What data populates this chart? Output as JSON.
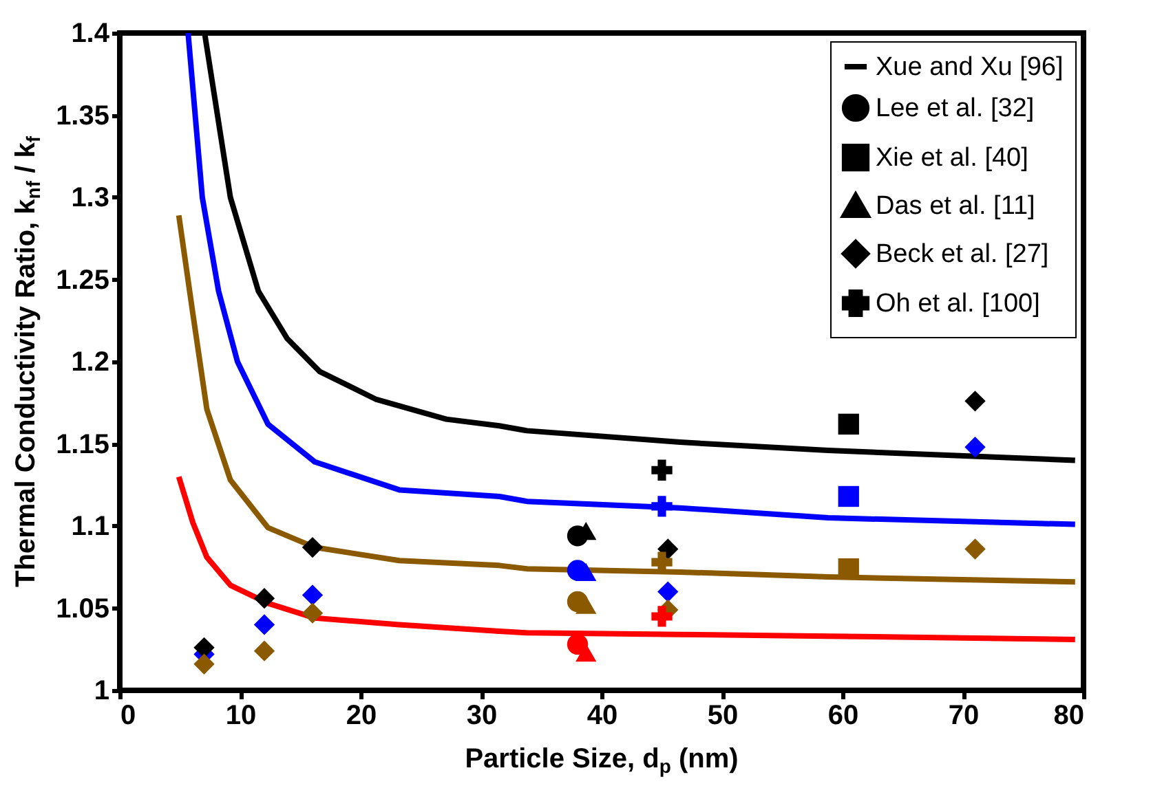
{
  "chart_data": {
    "type": "scatter",
    "xlabel": "Particle Size, d$_{p}$ (nm)",
    "ylabel": "Thermal Conductivity Ratio, k$_{nf}$ / k$_{f}$",
    "xlim": [
      0,
      80
    ],
    "xticks": [
      0,
      10,
      20,
      30,
      40,
      50,
      60,
      70,
      80
    ],
    "ylim": [
      1,
      1.4
    ],
    "yticks": [
      1,
      1.05,
      1.1,
      1.15,
      1.2,
      1.25,
      1.3,
      1.35,
      1.4
    ],
    "grid": false,
    "legend": "top right",
    "series": [
      {
        "type": "line",
        "name": "Xue and Xu [96]",
        "color": "#000000",
        "x": [
          7.04,
          9.18,
          11.5,
          13.9,
          16.6,
          21.3,
          27.1,
          31.5,
          33.8,
          46.5,
          58.8,
          79.3
        ],
        "values": [
          1.4,
          1.3,
          1.243,
          1.214,
          1.194,
          1.177,
          1.165,
          1.161,
          1.158,
          1.151,
          1.146,
          1.14
        ]
      },
      {
        "type": "line",
        "color": "#0000ff",
        "x": [
          5.67,
          6.85,
          8.2,
          9.77,
          12.3,
          16.2,
          23.2,
          31.5,
          33.8,
          46.5,
          58.8,
          79.3
        ],
        "values": [
          1.4,
          1.3,
          1.243,
          1.2,
          1.162,
          1.139,
          1.122,
          1.118,
          1.115,
          1.111,
          1.105,
          1.101
        ]
      },
      {
        "type": "line",
        "color": "#8b5a00",
        "x": [
          4.9,
          6.07,
          7.23,
          9.18,
          12.3,
          16.2,
          23.2,
          31.5,
          33.8,
          46.5,
          58.8,
          79.3
        ],
        "values": [
          1.289,
          1.229,
          1.171,
          1.128,
          1.099,
          1.087,
          1.079,
          1.076,
          1.074,
          1.072,
          1.069,
          1.066
        ]
      },
      {
        "type": "line",
        "color": "#ff0000",
        "x": [
          4.9,
          6.07,
          7.23,
          9.18,
          12.3,
          16.2,
          23.2,
          31.5,
          33.8,
          46.5,
          58.8,
          79.3
        ],
        "values": [
          1.13,
          1.102,
          1.081,
          1.064,
          1.053,
          1.044,
          1.04,
          1.036,
          1.035,
          1.034,
          1.033,
          1.031
        ]
      },
      {
        "type": "scatter",
        "name": "Lee et al. [32]",
        "marker": "circle",
        "x": [
          38,
          38,
          38,
          38
        ],
        "values": [
          1.094,
          1.073,
          1.054,
          1.028
        ],
        "colors": [
          "#000000",
          "#0000ff",
          "#8b5a00",
          "#ff0000"
        ]
      },
      {
        "type": "scatter",
        "name": "Xie et al. [40]",
        "marker": "square",
        "x": [
          60.5,
          60.5,
          60.5
        ],
        "values": [
          1.162,
          1.118,
          1.074
        ],
        "colors": [
          "#000000",
          "#0000ff",
          "#8b5a00"
        ]
      },
      {
        "type": "scatter",
        "name": "Das et al. [11]",
        "marker": "triangle",
        "x": [
          38.7,
          38.7,
          38.7,
          38.7
        ],
        "values": [
          1.097,
          1.072,
          1.052,
          1.023
        ],
        "colors": [
          "#000000",
          "#0000ff",
          "#8b5a00",
          "#ff0000"
        ]
      },
      {
        "type": "scatter",
        "name": "Beck et al. [27]",
        "marker": "diamond",
        "x": [
          7,
          7,
          7,
          12,
          12,
          12,
          16,
          16,
          16,
          45.5,
          45.5,
          45.5,
          71,
          71,
          71
        ],
        "values": [
          1.022,
          1.026,
          1.016,
          1.056,
          1.04,
          1.024,
          1.087,
          1.058,
          1.047,
          1.086,
          1.06,
          1.049,
          1.176,
          1.148,
          1.086
        ],
        "colors": [
          "#0000ff",
          "#000000",
          "#8b5a00",
          "#000000",
          "#0000ff",
          "#8b5a00",
          "#000000",
          "#0000ff",
          "#8b5a00",
          "#000000",
          "#0000ff",
          "#8b5a00",
          "#000000",
          "#0000ff",
          "#8b5a00"
        ]
      },
      {
        "type": "scatter",
        "name": "Oh et al. [100]",
        "marker": "cross",
        "x": [
          45,
          45,
          45,
          45
        ],
        "values": [
          1.134,
          1.112,
          1.078,
          1.045
        ],
        "colors": [
          "#000000",
          "#0000ff",
          "#8b5a00",
          "#ff0000"
        ]
      }
    ]
  }
}
